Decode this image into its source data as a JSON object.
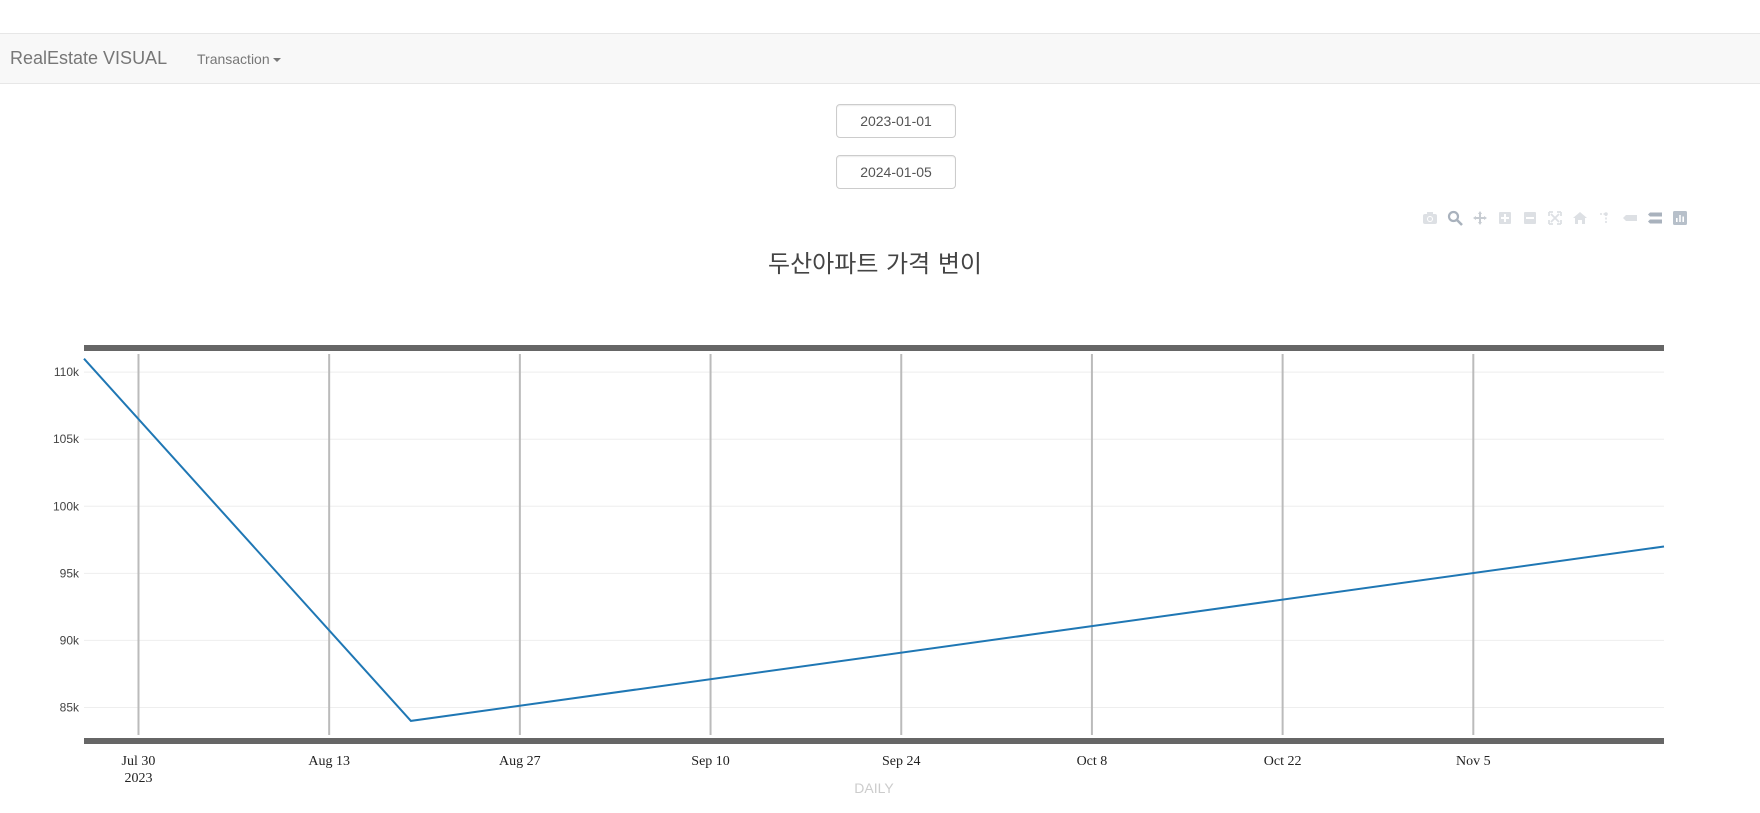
{
  "navbar": {
    "brand": "RealEstate VISUAL",
    "menu_label": "Transaction"
  },
  "filters": {
    "start_date": "2023-01-01",
    "end_date": "2024-01-05"
  },
  "modebar": {
    "icons": [
      "camera-icon",
      "zoom-icon",
      "pan-icon",
      "zoom-in-icon",
      "zoom-out-icon",
      "autoscale-icon",
      "reset-axes-icon",
      "spike-lines-icon",
      "hover-closest-icon",
      "hover-compare-icon",
      "plotly-logo-icon"
    ]
  },
  "chart_data": {
    "type": "line",
    "title": "두산아파트 가격 변이",
    "xlabel": "DAILY",
    "ylabel": "",
    "x_range": [
      "2023-07-26",
      "2023-11-19"
    ],
    "ylim": [
      82500,
      111800
    ],
    "x_ticks": [
      {
        "date": "2023-07-30",
        "label": "Jul 30",
        "sublabel": "2023"
      },
      {
        "date": "2023-08-13",
        "label": "Aug 13",
        "sublabel": ""
      },
      {
        "date": "2023-08-27",
        "label": "Aug 27",
        "sublabel": ""
      },
      {
        "date": "2023-09-10",
        "label": "Sep 10",
        "sublabel": ""
      },
      {
        "date": "2023-09-24",
        "label": "Sep 24",
        "sublabel": ""
      },
      {
        "date": "2023-10-08",
        "label": "Oct 8",
        "sublabel": ""
      },
      {
        "date": "2023-10-22",
        "label": "Oct 22",
        "sublabel": ""
      },
      {
        "date": "2023-11-05",
        "label": "Nov 5",
        "sublabel": ""
      }
    ],
    "y_ticks": [
      {
        "value": 85000,
        "label": "85k"
      },
      {
        "value": 90000,
        "label": "90k"
      },
      {
        "value": 95000,
        "label": "95k"
      },
      {
        "value": 100000,
        "label": "100k"
      },
      {
        "value": 105000,
        "label": "105k"
      },
      {
        "value": 110000,
        "label": "110k"
      }
    ],
    "series": [
      {
        "color": "#1f77b4",
        "points": [
          {
            "x": "2023-07-26",
            "y": 111000
          },
          {
            "x": "2023-08-19",
            "y": 84000
          },
          {
            "x": "2023-11-19",
            "y": 97000
          }
        ]
      }
    ],
    "grid": {
      "x": true,
      "y": true
    },
    "colors": {
      "line": "#1f77b4",
      "frame": "#666666",
      "x_grid": "#bbbbbb",
      "y_grid": "#eeeeee",
      "title": "#444444",
      "xlabel": "#cccccc"
    }
  }
}
